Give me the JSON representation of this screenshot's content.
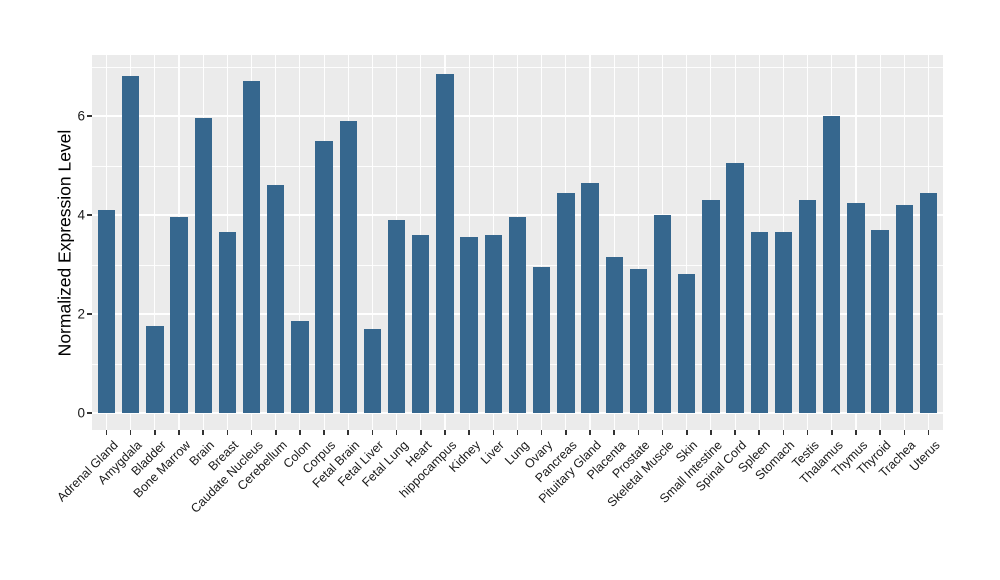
{
  "figure": {
    "background": "#ffffff",
    "panel_background": "#ebebeb",
    "grid_color": "#ffffff",
    "bar_color": "#36678e",
    "tick_color": "#333333",
    "axis_text_color": "#1a1a1a"
  },
  "chart_data": {
    "type": "bar",
    "title": "",
    "xlabel": "",
    "ylabel": "Normalized Expression Level",
    "ylim": [
      0,
      7.23
    ],
    "yticks": [
      0,
      2,
      4,
      6
    ],
    "yticks_minor": [
      1,
      3,
      5,
      7
    ],
    "grid": "white major+minor horizontal lines and vertical category lines on gray panel",
    "legend": "none",
    "x_label_angle": 45,
    "categories": [
      "Adrenal Gland",
      "Amygdala",
      "Bladder",
      "Bone Marrow",
      "Brain",
      "Breast",
      "Caudate Nucleus",
      "Cerebellum",
      "Colon",
      "Corpus",
      "Fetal Brain",
      "Fetal Liver",
      "Fetal Lung",
      "Heart",
      "hippocampus",
      "Kidney",
      "Liver",
      "Lung",
      "Ovary",
      "Pancreas",
      "Pituitary Gland",
      "Placenta",
      "Prostate",
      "Skeletal Muscle",
      "Skin",
      "Small Intestine",
      "Spinal Cord",
      "Spleen",
      "Stomach",
      "Testis",
      "Thalamus",
      "Thymus",
      "Thyroid",
      "Trachea",
      "Uterus"
    ],
    "values": [
      4.1,
      6.8,
      1.75,
      3.95,
      5.95,
      3.65,
      6.7,
      4.6,
      1.85,
      5.5,
      5.9,
      1.7,
      3.9,
      3.6,
      6.85,
      3.55,
      3.6,
      3.95,
      2.95,
      4.45,
      4.65,
      3.15,
      2.9,
      4.0,
      2.8,
      4.3,
      5.05,
      3.65,
      3.65,
      4.3,
      6.0,
      4.25,
      3.7,
      4.2,
      4.45
    ]
  }
}
